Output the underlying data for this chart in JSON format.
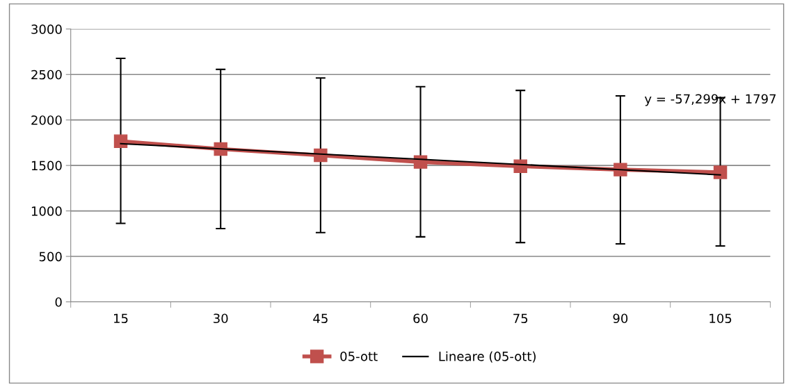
{
  "chart_data": {
    "type": "line",
    "categories": [
      "15",
      "30",
      "45",
      "60",
      "75",
      "90",
      "105"
    ],
    "series": [
      {
        "name": "05-ott",
        "color": "#c0504d",
        "marker": "square",
        "values": [
          1767,
          1680,
          1611,
          1538,
          1492,
          1454,
          1425
        ],
        "errors": [
          [
            863,
            2677
          ],
          [
            806,
            2556
          ],
          [
            762,
            2461
          ],
          [
            715,
            2366
          ],
          [
            652,
            2325
          ],
          [
            638,
            2265
          ],
          [
            615,
            2245
          ]
        ]
      },
      {
        "name": "Lineare (05-ott)",
        "color": "#000000",
        "marker": "none",
        "values": [
          1740,
          1682,
          1625,
          1568,
          1511,
          1453,
          1396
        ]
      }
    ],
    "ylim": [
      0,
      3000
    ],
    "yticks": [
      0,
      500,
      1000,
      1500,
      2000,
      2500,
      3000
    ],
    "grid": "y",
    "legend": "bottom",
    "annotations": [
      "y = -57,299x + 1797"
    ]
  }
}
